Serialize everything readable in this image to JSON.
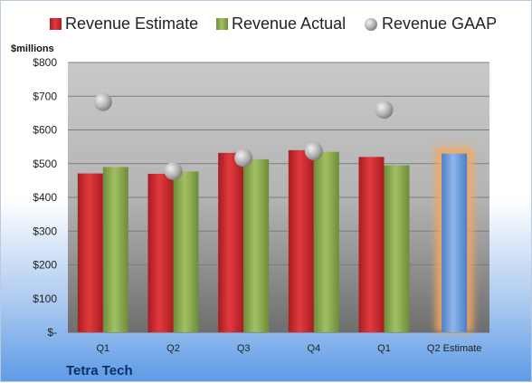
{
  "chart_data": {
    "type": "bar",
    "title": "",
    "company": "Tetra Tech",
    "unit_label": "$millions",
    "categories": [
      "Q1",
      "Q2",
      "Q3",
      "Q4",
      "Q1",
      "Q2 Estimate"
    ],
    "series": [
      {
        "name": "Revenue Estimate",
        "kind": "bar",
        "color": "#d42a2f",
        "values": [
          471,
          470,
          532,
          540,
          520,
          null
        ]
      },
      {
        "name": "Revenue Actual",
        "kind": "bar",
        "color": "#8aaa4e",
        "values": [
          490,
          477,
          513,
          535,
          495,
          null
        ]
      },
      {
        "name": "Revenue GAAP",
        "kind": "marker",
        "color": "#b8b8b8",
        "values": [
          683,
          478,
          517,
          537,
          660,
          null
        ]
      },
      {
        "name": "Q2 Estimate",
        "kind": "bar",
        "color": "#6f9ddc",
        "highlight": "#f6a95a",
        "values": [
          null,
          null,
          null,
          null,
          null,
          530
        ]
      }
    ],
    "ylim": [
      0,
      800
    ],
    "yticks": [
      0,
      100,
      200,
      300,
      400,
      500,
      600,
      700,
      800
    ],
    "ytick_labels": [
      "$-",
      "$100",
      "$200",
      "$300",
      "$400",
      "$500",
      "$600",
      "$700",
      "$800"
    ],
    "grid": true,
    "legend": "top"
  }
}
